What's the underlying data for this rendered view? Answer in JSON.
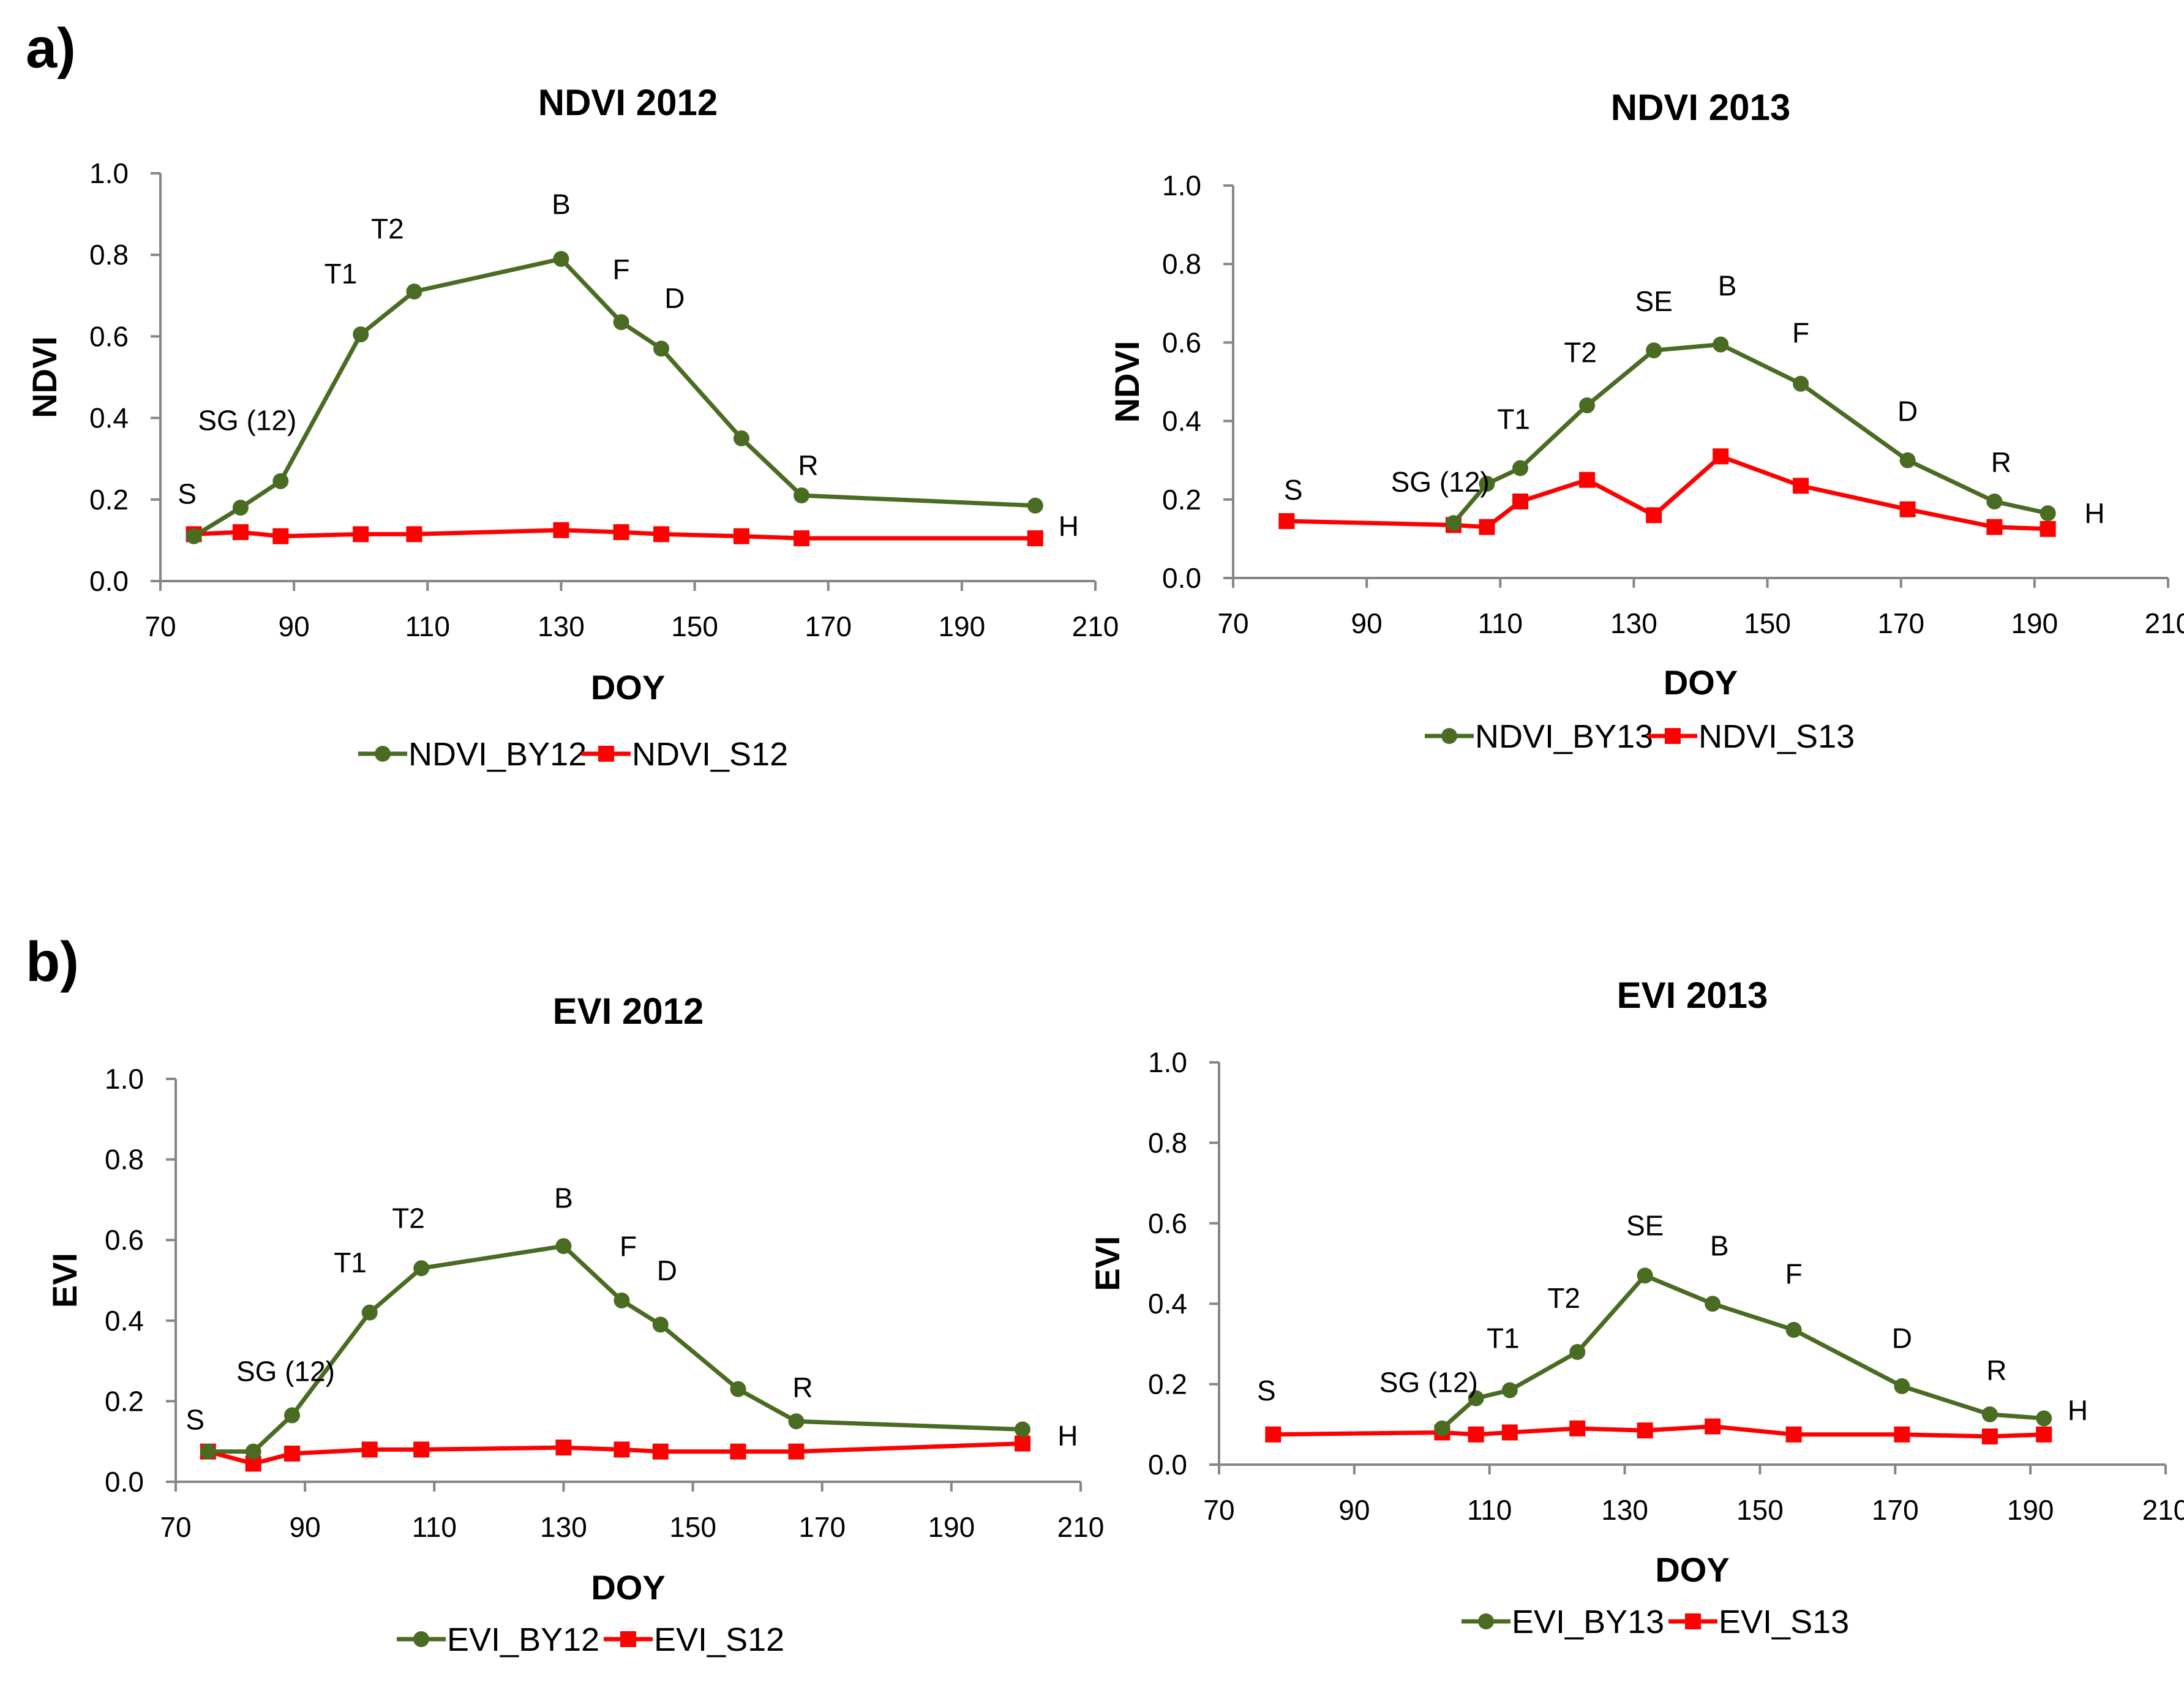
{
  "panels": [
    {
      "label": "a)"
    },
    {
      "label": "b)"
    }
  ],
  "colors": {
    "green": "#4a6b22",
    "red": "#ff0000"
  },
  "chart_data": [
    {
      "type": "line",
      "title": "NDVI 2012",
      "xlabel": "DOY",
      "ylabel": "NDVI",
      "xlim": [
        70,
        210
      ],
      "ylim": [
        0,
        1
      ],
      "xticks": [
        70,
        90,
        110,
        130,
        150,
        170,
        190,
        210
      ],
      "yticks": [
        "0.0",
        "0.2",
        "0.4",
        "0.6",
        "0.8",
        "1.0"
      ],
      "grid": false,
      "legend_position": "bottom",
      "series": [
        {
          "name": "NDVI_BY12",
          "color": "#4a6b22",
          "marker": "circle",
          "x": [
            75,
            82,
            88,
            100,
            108,
            130,
            139,
            145,
            157,
            166,
            201
          ],
          "y": [
            0.11,
            0.18,
            0.245,
            0.605,
            0.71,
            0.79,
            0.635,
            0.57,
            0.35,
            0.21,
            0.185
          ]
        },
        {
          "name": "NDVI_S12",
          "color": "#ff0000",
          "marker": "square",
          "x": [
            75,
            82,
            88,
            100,
            108,
            130,
            139,
            145,
            157,
            166,
            201
          ],
          "y": [
            0.115,
            0.12,
            0.11,
            0.115,
            0.115,
            0.125,
            0.12,
            0.115,
            0.11,
            0.105,
            0.105
          ]
        }
      ],
      "annotations": [
        {
          "text": "S",
          "x": 74,
          "y": 0.19
        },
        {
          "text": "SG (12)",
          "x": 83,
          "y": 0.37
        },
        {
          "text": "T1",
          "x": 97,
          "y": 0.73
        },
        {
          "text": "T2",
          "x": 104,
          "y": 0.84
        },
        {
          "text": "B",
          "x": 130,
          "y": 0.9
        },
        {
          "text": "F",
          "x": 139,
          "y": 0.74
        },
        {
          "text": "D",
          "x": 147,
          "y": 0.67
        },
        {
          "text": "R",
          "x": 167,
          "y": 0.26
        },
        {
          "text": "H",
          "x": 206,
          "y": 0.11
        }
      ]
    },
    {
      "type": "line",
      "title": "NDVI 2013",
      "xlabel": "DOY",
      "ylabel": "NDVI",
      "xlim": [
        70,
        210
      ],
      "ylim": [
        0,
        1
      ],
      "xticks": [
        70,
        90,
        110,
        130,
        150,
        170,
        190,
        210
      ],
      "yticks": [
        "0.0",
        "0.2",
        "0.4",
        "0.6",
        "0.8",
        "1.0"
      ],
      "grid": false,
      "legend_position": "bottom",
      "series": [
        {
          "name": "NDVI_BY13",
          "color": "#4a6b22",
          "marker": "circle",
          "x": [
            103,
            108,
            113,
            123,
            133,
            143,
            155,
            171,
            184,
            192
          ],
          "y": [
            0.14,
            0.24,
            0.28,
            0.44,
            0.58,
            0.595,
            0.495,
            0.3,
            0.195,
            0.165
          ]
        },
        {
          "name": "NDVI_S13",
          "color": "#ff0000",
          "marker": "square",
          "x": [
            78,
            103,
            108,
            113,
            123,
            133,
            143,
            155,
            171,
            184,
            192
          ],
          "y": [
            0.145,
            0.135,
            0.13,
            0.195,
            0.25,
            0.16,
            0.31,
            0.235,
            0.175,
            0.13,
            0.125
          ]
        }
      ],
      "annotations": [
        {
          "text": "S",
          "x": 79,
          "y": 0.2
        },
        {
          "text": "SG (12)",
          "x": 101,
          "y": 0.22
        },
        {
          "text": "T1",
          "x": 112,
          "y": 0.38
        },
        {
          "text": "T2",
          "x": 122,
          "y": 0.55
        },
        {
          "text": "SE",
          "x": 133,
          "y": 0.68
        },
        {
          "text": "B",
          "x": 144,
          "y": 0.72
        },
        {
          "text": "F",
          "x": 155,
          "y": 0.6
        },
        {
          "text": "D",
          "x": 171,
          "y": 0.4
        },
        {
          "text": "R",
          "x": 185,
          "y": 0.27
        },
        {
          "text": "H",
          "x": 199,
          "y": 0.14
        }
      ]
    },
    {
      "type": "line",
      "title": "EVI 2012",
      "xlabel": "DOY",
      "ylabel": "EVI",
      "xlim": [
        70,
        210
      ],
      "ylim": [
        0,
        1
      ],
      "xticks": [
        70,
        90,
        110,
        130,
        150,
        170,
        190,
        210
      ],
      "yticks": [
        "0.0",
        "0.2",
        "0.4",
        "0.6",
        "0.8",
        "1.0"
      ],
      "grid": false,
      "legend_position": "bottom",
      "series": [
        {
          "name": "EVI_BY12",
          "color": "#4a6b22",
          "marker": "circle",
          "x": [
            75,
            82,
            88,
            100,
            108,
            130,
            139,
            145,
            157,
            166,
            201
          ],
          "y": [
            0.075,
            0.075,
            0.165,
            0.42,
            0.53,
            0.585,
            0.45,
            0.39,
            0.23,
            0.15,
            0.13
          ]
        },
        {
          "name": "EVI_S12",
          "color": "#ff0000",
          "marker": "square",
          "x": [
            75,
            82,
            88,
            100,
            108,
            130,
            139,
            145,
            157,
            166,
            201
          ],
          "y": [
            0.075,
            0.045,
            0.07,
            0.08,
            0.08,
            0.085,
            0.08,
            0.075,
            0.075,
            0.075,
            0.095
          ]
        }
      ],
      "annotations": [
        {
          "text": "S",
          "x": 73,
          "y": 0.13
        },
        {
          "text": "SG (12)",
          "x": 87,
          "y": 0.25
        },
        {
          "text": "T1",
          "x": 97,
          "y": 0.52
        },
        {
          "text": "T2",
          "x": 106,
          "y": 0.63
        },
        {
          "text": "B",
          "x": 130,
          "y": 0.68
        },
        {
          "text": "F",
          "x": 140,
          "y": 0.56
        },
        {
          "text": "D",
          "x": 146,
          "y": 0.5
        },
        {
          "text": "R",
          "x": 167,
          "y": 0.21
        },
        {
          "text": "H",
          "x": 208,
          "y": 0.09
        }
      ]
    },
    {
      "type": "line",
      "title": "EVI 2013",
      "xlabel": "DOY",
      "ylabel": "EVI",
      "xlim": [
        70,
        210
      ],
      "ylim": [
        0,
        1
      ],
      "xticks": [
        70,
        90,
        110,
        130,
        150,
        170,
        190,
        210
      ],
      "yticks": [
        "0.0",
        "0.2",
        "0.4",
        "0.6",
        "0.8",
        "1.0"
      ],
      "grid": false,
      "legend_position": "bottom",
      "series": [
        {
          "name": "EVI_BY13",
          "color": "#4a6b22",
          "marker": "circle",
          "x": [
            103,
            108,
            113,
            123,
            133,
            143,
            155,
            171,
            184,
            192
          ],
          "y": [
            0.09,
            0.165,
            0.185,
            0.28,
            0.47,
            0.4,
            0.335,
            0.195,
            0.125,
            0.115
          ]
        },
        {
          "name": "EVI_S13",
          "color": "#ff0000",
          "marker": "square",
          "x": [
            78,
            103,
            108,
            113,
            123,
            133,
            143,
            155,
            171,
            184,
            192
          ],
          "y": [
            0.075,
            0.08,
            0.075,
            0.08,
            0.09,
            0.085,
            0.095,
            0.075,
            0.075,
            0.07,
            0.075
          ]
        }
      ],
      "annotations": [
        {
          "text": "S",
          "x": 77,
          "y": 0.16
        },
        {
          "text": "SG (12)",
          "x": 101,
          "y": 0.18
        },
        {
          "text": "T1",
          "x": 112,
          "y": 0.29
        },
        {
          "text": "T2",
          "x": 121,
          "y": 0.39
        },
        {
          "text": "SE",
          "x": 133,
          "y": 0.57
        },
        {
          "text": "B",
          "x": 144,
          "y": 0.52
        },
        {
          "text": "F",
          "x": 155,
          "y": 0.45
        },
        {
          "text": "D",
          "x": 171,
          "y": 0.29
        },
        {
          "text": "R",
          "x": 185,
          "y": 0.21
        },
        {
          "text": "H",
          "x": 197,
          "y": 0.11
        }
      ]
    }
  ]
}
